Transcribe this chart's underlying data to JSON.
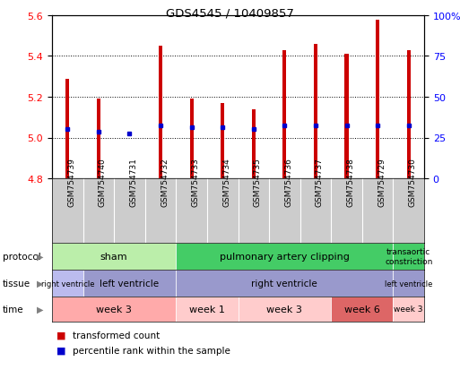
{
  "title": "GDS4545 / 10409857",
  "samples": [
    "GSM754739",
    "GSM754740",
    "GSM754731",
    "GSM754732",
    "GSM754733",
    "GSM754734",
    "GSM754735",
    "GSM754736",
    "GSM754737",
    "GSM754738",
    "GSM754729",
    "GSM754730"
  ],
  "bar_bottoms": [
    4.8,
    4.8,
    4.97,
    4.8,
    4.8,
    4.8,
    4.8,
    4.8,
    4.8,
    4.8,
    4.8,
    4.8
  ],
  "bar_tops": [
    5.29,
    5.19,
    4.97,
    5.45,
    5.19,
    5.17,
    5.14,
    5.43,
    5.46,
    5.41,
    5.58,
    5.43
  ],
  "percentile_y": [
    5.04,
    5.03,
    5.02,
    5.06,
    5.05,
    5.05,
    5.04,
    5.06,
    5.06,
    5.06,
    5.06,
    5.06
  ],
  "ylim": [
    4.8,
    5.6
  ],
  "yticks_left": [
    4.8,
    5.0,
    5.2,
    5.4,
    5.6
  ],
  "yticks_right": [
    0,
    25,
    50,
    75,
    100
  ],
  "bar_color": "#cc0000",
  "percentile_color": "#0000cc",
  "protocol_groups": [
    {
      "label": "sham",
      "start": 0,
      "end": 4,
      "color": "#bbeeaa"
    },
    {
      "label": "pulmonary artery clipping",
      "start": 4,
      "end": 11,
      "color": "#44cc66"
    },
    {
      "label": "transaortic\nconstriction",
      "start": 11,
      "end": 12,
      "color": "#44cc66"
    }
  ],
  "tissue_groups": [
    {
      "label": "right ventricle",
      "start": 0,
      "end": 1,
      "color": "#bbbbee"
    },
    {
      "label": "left ventricle",
      "start": 1,
      "end": 4,
      "color": "#9999cc"
    },
    {
      "label": "right ventricle",
      "start": 4,
      "end": 11,
      "color": "#9999cc"
    },
    {
      "label": "left ventricle",
      "start": 11,
      "end": 12,
      "color": "#9999cc"
    }
  ],
  "time_groups": [
    {
      "label": "week 3",
      "start": 0,
      "end": 4,
      "color": "#ffaaaa"
    },
    {
      "label": "week 1",
      "start": 4,
      "end": 6,
      "color": "#ffcccc"
    },
    {
      "label": "week 3",
      "start": 6,
      "end": 9,
      "color": "#ffcccc"
    },
    {
      "label": "week 6",
      "start": 9,
      "end": 11,
      "color": "#dd6666"
    },
    {
      "label": "week 3",
      "start": 11,
      "end": 12,
      "color": "#ffcccc"
    }
  ],
  "legend_items": [
    {
      "label": "transformed count",
      "color": "#cc0000"
    },
    {
      "label": "percentile rank within the sample",
      "color": "#0000cc"
    }
  ],
  "sample_box_color": "#cccccc",
  "bar_width": 0.12
}
